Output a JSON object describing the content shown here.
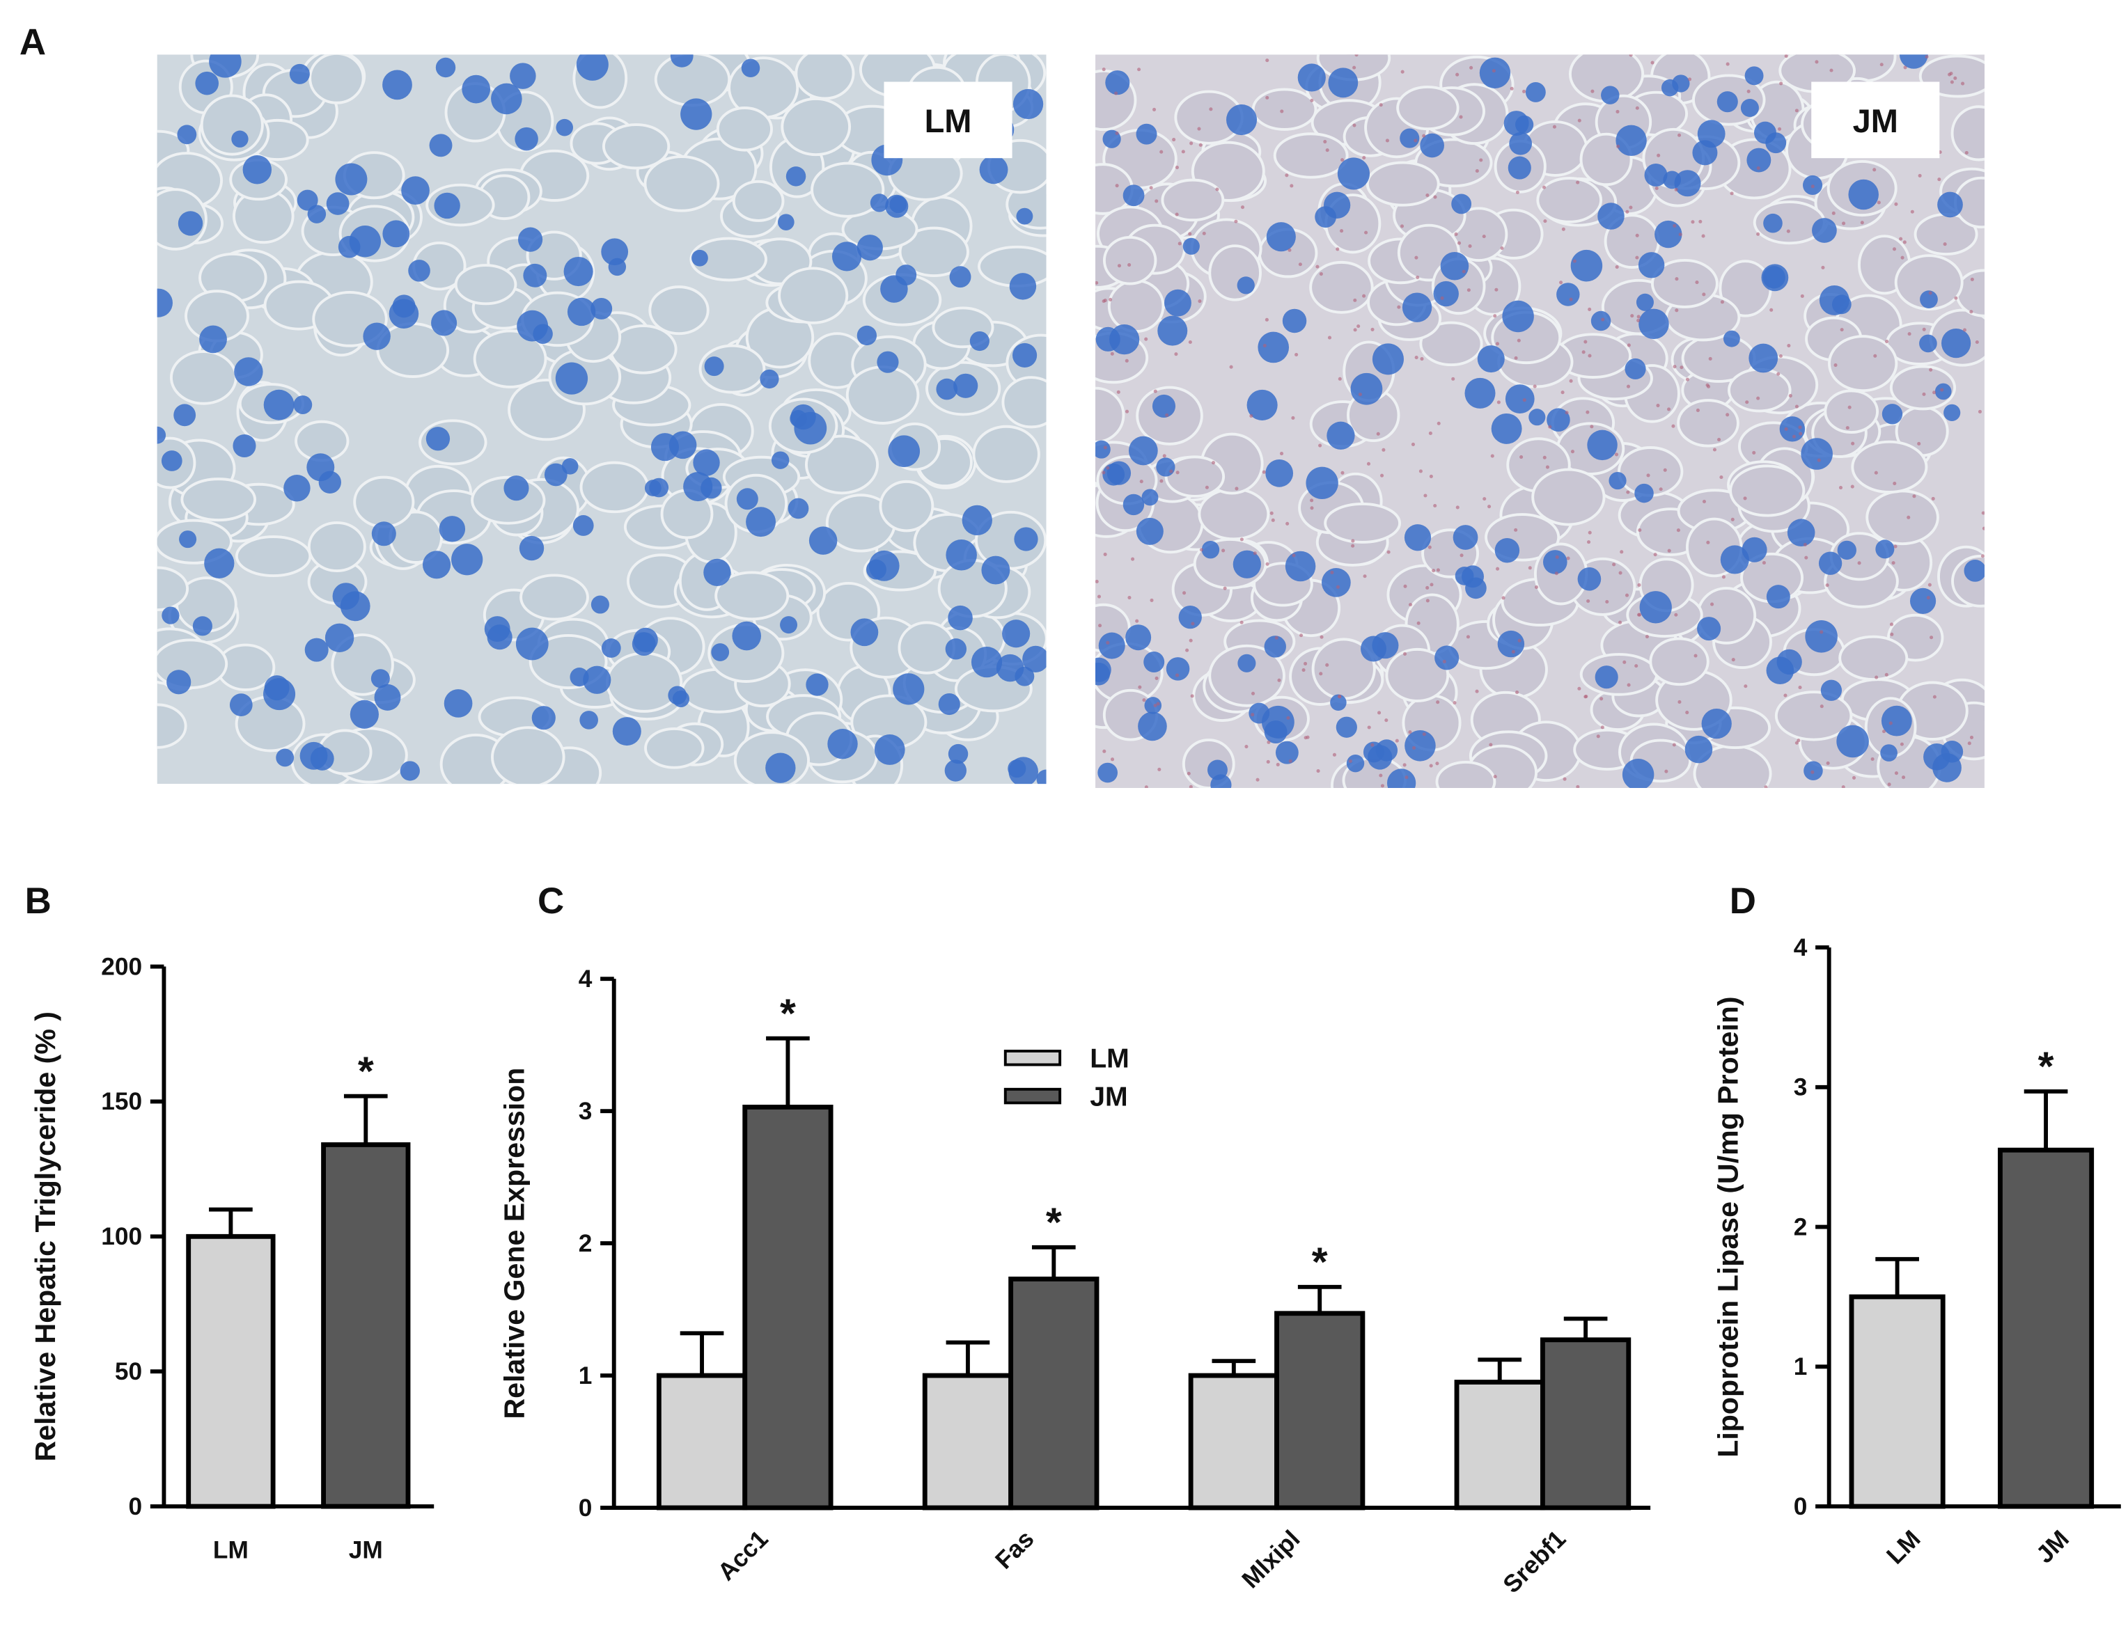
{
  "image_panel": {
    "panel": "A",
    "images": [
      {
        "label": "LM"
      },
      {
        "label": "JM"
      }
    ]
  },
  "chart_data": [
    {
      "type": "bar",
      "panel": "B",
      "y_label": "Relative Hepatic Triglyceride (% )",
      "categories": [
        "LM",
        "JM"
      ],
      "values": [
        100,
        134
      ],
      "errors": [
        10,
        18
      ],
      "colors": [
        "#d3d3d3",
        "#595959"
      ],
      "annotations": [
        null,
        "*"
      ],
      "ylim": [
        0,
        200
      ],
      "yticks": [
        0,
        50,
        100,
        150,
        200
      ]
    },
    {
      "type": "grouped-bar",
      "panel": "C",
      "y_label": "Relative Gene Expression",
      "categories": [
        "Acc1",
        "Fas",
        "Mlxipl",
        "Srebf1"
      ],
      "series": [
        {
          "name": "LM",
          "color": "#d3d3d3",
          "values": [
            1,
            1,
            1,
            0.95
          ],
          "errors": [
            0.32,
            0.25,
            0.11,
            0.17
          ],
          "annotations": [
            null,
            null,
            null,
            null
          ]
        },
        {
          "name": "JM",
          "color": "#595959",
          "values": [
            3.03,
            1.73,
            1.47,
            1.27
          ],
          "errors": [
            0.52,
            0.24,
            0.2,
            0.16
          ],
          "annotations": [
            "*",
            "*",
            "*",
            null
          ]
        }
      ],
      "legend": "top-center",
      "ylim": [
        0,
        4
      ],
      "yticks": [
        0,
        1,
        2,
        3,
        4
      ]
    },
    {
      "type": "bar",
      "panel": "D",
      "y_label": "Lipoprotein Lipase (U/mg Protein)",
      "categories": [
        "LM",
        "JM"
      ],
      "values": [
        1.5,
        2.55
      ],
      "errors": [
        0.27,
        0.42
      ],
      "colors": [
        "#d3d3d3",
        "#595959"
      ],
      "annotations": [
        null,
        "*"
      ],
      "ylim": [
        0,
        4
      ],
      "yticks": [
        0,
        1,
        2,
        3,
        4
      ]
    }
  ]
}
